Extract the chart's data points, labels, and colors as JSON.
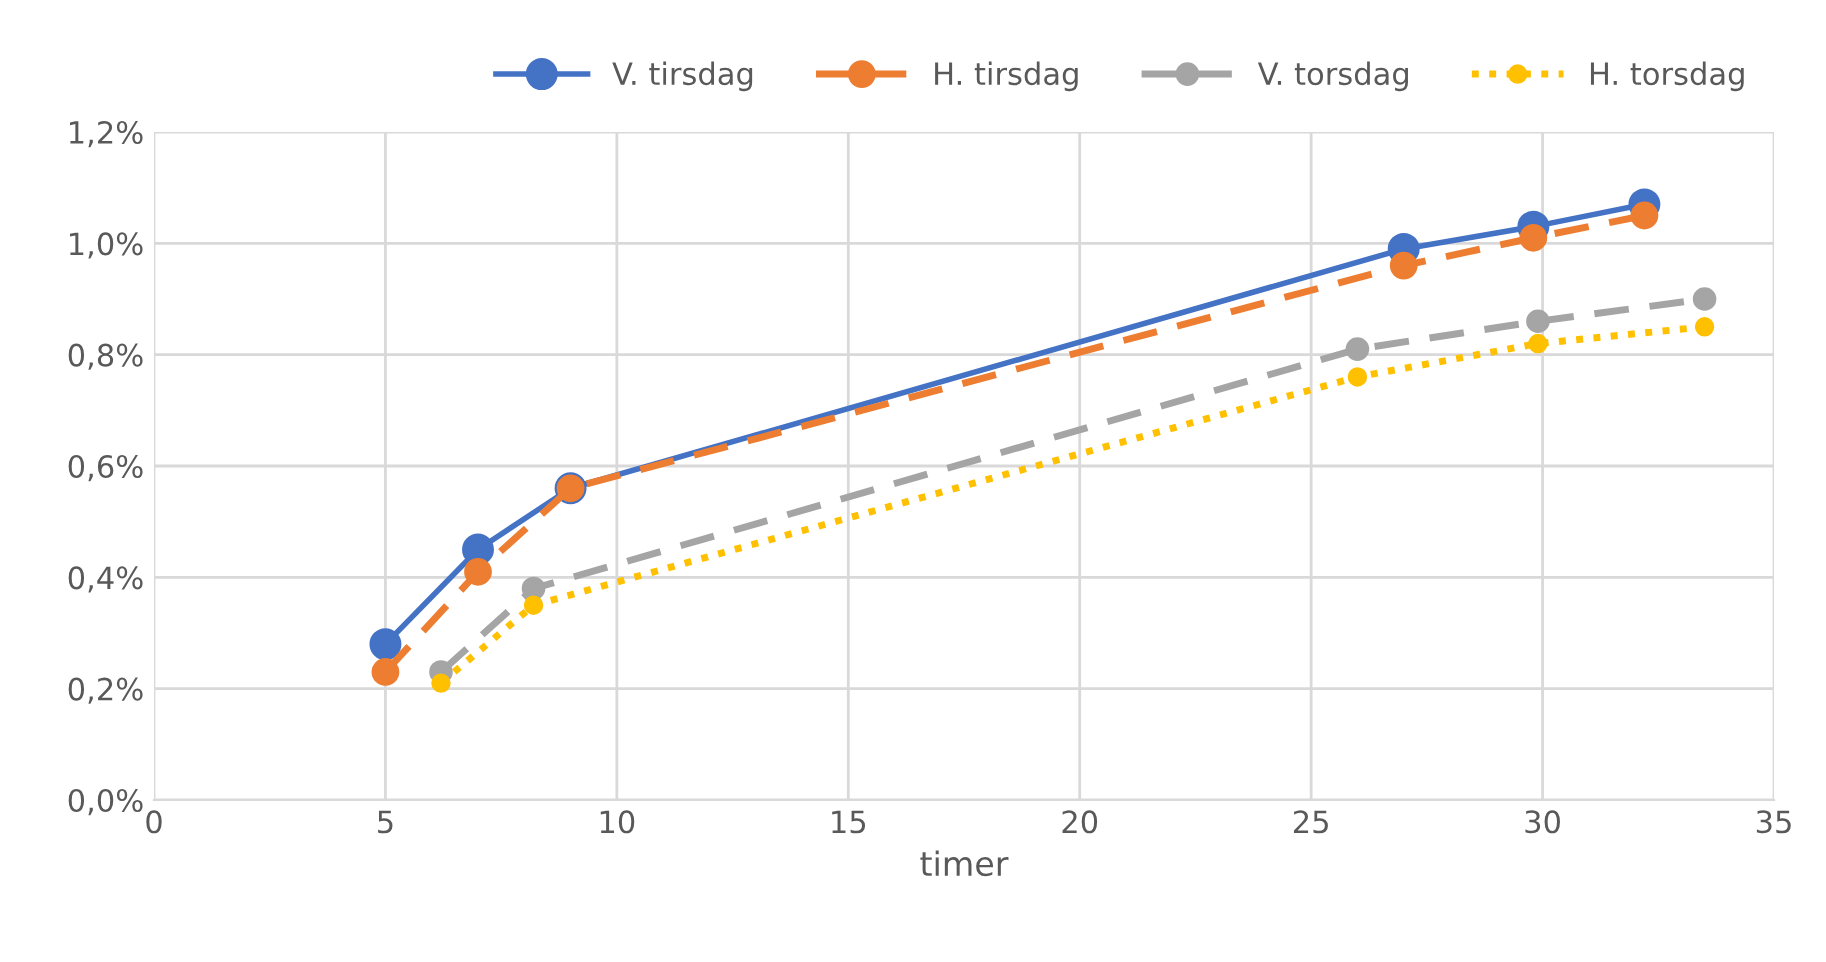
{
  "chart_data": {
    "type": "line",
    "xlabel": "timer",
    "xlim": [
      0,
      35
    ],
    "xticks": [
      0,
      5,
      10,
      15,
      20,
      25,
      30,
      35
    ],
    "ylim": [
      0,
      1.2
    ],
    "yticks": [
      {
        "value": 0,
        "label": "0,0%"
      },
      {
        "value": 0.2,
        "label": "0,2%"
      },
      {
        "value": 0.4,
        "label": "0,4%"
      },
      {
        "value": 0.6,
        "label": "0,6%"
      },
      {
        "value": 0.8,
        "label": "0,8%"
      },
      {
        "value": 1.0,
        "label": "1,0%"
      },
      {
        "value": 1.2,
        "label": "1,2%"
      }
    ],
    "grid": true,
    "legend": "top",
    "marker": "circle",
    "series": [
      {
        "name": "V. tirsdag",
        "color": "#4472c4",
        "line_style": "solid",
        "x": [
          5,
          7,
          9,
          27,
          29.8,
          32.2
        ],
        "values": [
          0.28,
          0.45,
          0.56,
          0.99,
          1.03,
          1.07
        ]
      },
      {
        "name": "H. tirsdag",
        "color": "#ed7d31",
        "line_style": "dashed",
        "x": [
          5,
          7,
          9,
          27,
          29.8,
          32.2
        ],
        "values": [
          0.23,
          0.41,
          0.56,
          0.96,
          1.01,
          1.05
        ]
      },
      {
        "name": "V. torsdag",
        "color": "#a5a5a5",
        "line_style": "dashed",
        "x": [
          6.2,
          8.2,
          26,
          29.9,
          33.5
        ],
        "values": [
          0.23,
          0.38,
          0.81,
          0.86,
          0.9
        ]
      },
      {
        "name": "H. torsdag",
        "color": "#ffc000",
        "line_style": "dotted",
        "x": [
          6.2,
          8.2,
          26,
          29.9,
          33.5
        ],
        "values": [
          0.21,
          0.35,
          0.76,
          0.82,
          0.85
        ]
      }
    ]
  }
}
